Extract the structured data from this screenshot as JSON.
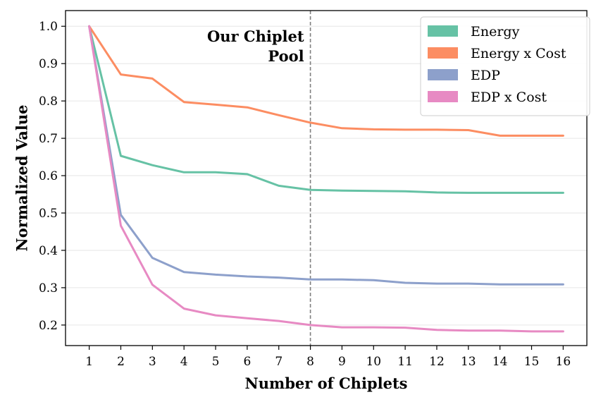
{
  "chart_data": {
    "type": "line",
    "title": "",
    "xlabel": "Number of Chiplets",
    "ylabel": "Normalized Value",
    "x": [
      1,
      2,
      3,
      4,
      5,
      6,
      7,
      8,
      9,
      10,
      11,
      12,
      13,
      14,
      15,
      16
    ],
    "xlim": [
      0.25,
      16.75
    ],
    "ylim": [
      0.145,
      1.042
    ],
    "yticks": [
      0.2,
      0.3,
      0.4,
      0.5,
      0.6,
      0.7,
      0.8,
      0.9,
      1.0
    ],
    "ytick_labels": [
      "0.2",
      "0.3",
      "0.4",
      "0.5",
      "0.6",
      "0.7",
      "0.8",
      "0.9",
      "1.0"
    ],
    "xtick_labels": [
      "1",
      "2",
      "3",
      "4",
      "5",
      "6",
      "7",
      "8",
      "9",
      "10",
      "11",
      "12",
      "13",
      "14",
      "15",
      "16"
    ],
    "grid": "y",
    "legend_position": "top-right",
    "series": [
      {
        "name": "Energy",
        "color": "#66c2a5",
        "values": [
          1.0,
          0.653,
          0.628,
          0.609,
          0.609,
          0.604,
          0.573,
          0.562,
          0.56,
          0.559,
          0.558,
          0.555,
          0.554,
          0.554,
          0.554,
          0.554
        ]
      },
      {
        "name": "Energy x Cost",
        "color": "#fc8d62",
        "values": [
          1.0,
          0.871,
          0.86,
          0.797,
          0.79,
          0.783,
          0.762,
          0.742,
          0.727,
          0.724,
          0.723,
          0.723,
          0.722,
          0.707,
          0.707,
          0.707
        ]
      },
      {
        "name": "EDP",
        "color": "#8da0cb",
        "values": [
          1.0,
          0.495,
          0.38,
          0.342,
          0.335,
          0.33,
          0.327,
          0.322,
          0.322,
          0.32,
          0.313,
          0.311,
          0.311,
          0.309,
          0.309,
          0.309
        ]
      },
      {
        "name": "EDP x Cost",
        "color": "#e78ac3",
        "values": [
          1.0,
          0.466,
          0.308,
          0.244,
          0.226,
          0.218,
          0.211,
          0.2,
          0.194,
          0.194,
          0.193,
          0.187,
          0.185,
          0.185,
          0.183,
          0.183
        ]
      }
    ],
    "vline": {
      "x": 8,
      "color": "#7f7f7f"
    },
    "annotation": {
      "line1": "Our Chiplet",
      "line2": "Pool"
    }
  }
}
